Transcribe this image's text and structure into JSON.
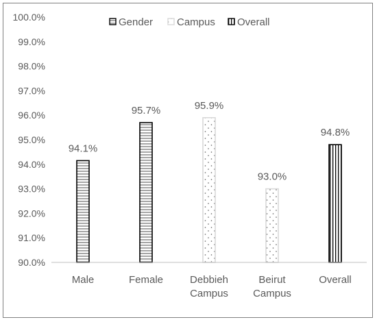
{
  "chart_data": {
    "type": "bar",
    "categories": [
      "Male",
      "Female",
      "Debbieh Campus",
      "Beirut Campus",
      "Overall"
    ],
    "category_lines": [
      [
        "Male"
      ],
      [
        "Female"
      ],
      [
        "Debbieh",
        "Campus"
      ],
      [
        "Beirut",
        "Campus"
      ],
      [
        "Overall"
      ]
    ],
    "values": [
      94.15,
      95.7,
      95.9,
      93.0,
      94.8
    ],
    "data_labels": [
      "94.1%",
      "95.7%",
      "95.9%",
      "93.0%",
      "94.8%"
    ],
    "groups": [
      "Gender",
      "Gender",
      "Campus",
      "Campus",
      "Overall"
    ],
    "ylim": [
      90.0,
      100.0
    ],
    "y_ticks": [
      90.0,
      91.0,
      92.0,
      93.0,
      94.0,
      95.0,
      96.0,
      97.0,
      98.0,
      99.0,
      100.0
    ],
    "y_tick_labels": [
      "90.0%",
      "91.0%",
      "92.0%",
      "93.0%",
      "94.0%",
      "95.0%",
      "96.0%",
      "97.0%",
      "98.0%",
      "99.0%",
      "100.0%"
    ],
    "title": "",
    "xlabel": "",
    "ylabel": "",
    "grid": false,
    "legend": {
      "placement": "top-center",
      "entries": [
        {
          "name": "Gender",
          "pattern": "horizontal-stripes"
        },
        {
          "name": "Campus",
          "pattern": "dots"
        },
        {
          "name": "Overall",
          "pattern": "vertical-stripes"
        }
      ]
    },
    "colors": {
      "gender_border": "#000000",
      "gender_stripe": "#a6a6a6",
      "campus_border": "#d9d9d9",
      "campus_dot": "#595959",
      "overall_border": "#000000",
      "overall_stripe": "#000000",
      "axis": "#bfbfbf",
      "text": "#595959"
    }
  }
}
